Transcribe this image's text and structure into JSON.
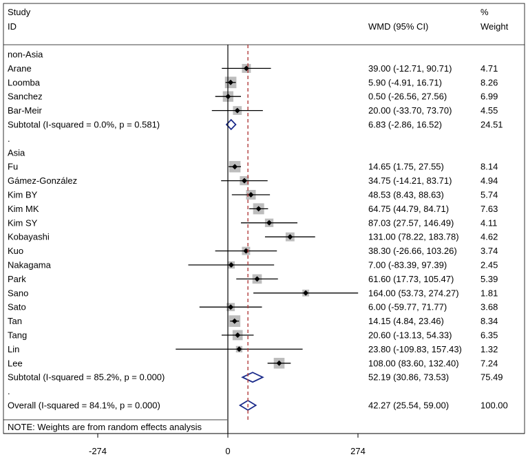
{
  "chart_data": {
    "type": "forest",
    "header": {
      "study_line1": "Study",
      "study_line2": "ID",
      "effect": "WMD (95% CI)",
      "weight_line1": "%",
      "weight_line2": "Weight"
    },
    "x_axis": {
      "range": [
        -320,
        400
      ],
      "ticks": [
        {
          "value": -274,
          "label": "-274"
        },
        {
          "value": 0,
          "label": "0"
        },
        {
          "value": 274,
          "label": "274"
        }
      ],
      "null_line": 0
    },
    "rows": [
      {
        "kind": "group",
        "label": "non-Asia"
      },
      {
        "kind": "study",
        "label": "Arane",
        "est": 39.0,
        "lo": -12.71,
        "hi": 90.71,
        "ci_text": "39.00 (-12.71, 90.71)",
        "weight": "4.71"
      },
      {
        "kind": "study",
        "label": "Loomba",
        "est": 5.9,
        "lo": -4.91,
        "hi": 16.71,
        "ci_text": "5.90 (-4.91, 16.71)",
        "weight": "8.26"
      },
      {
        "kind": "study",
        "label": "Sanchez",
        "est": 0.5,
        "lo": -26.56,
        "hi": 27.56,
        "ci_text": "0.50 (-26.56, 27.56)",
        "weight": "6.99"
      },
      {
        "kind": "study",
        "label": "Bar-Meir",
        "est": 20.0,
        "lo": -33.7,
        "hi": 73.7,
        "ci_text": "20.00 (-33.70, 73.70)",
        "weight": "4.55"
      },
      {
        "kind": "subtotal",
        "label": "Subtotal  (I-squared = 0.0%, p = 0.581)",
        "est": 6.83,
        "lo": -2.86,
        "hi": 16.52,
        "ci_text": "6.83 (-2.86, 16.52)",
        "weight": "24.51"
      },
      {
        "kind": "spacer",
        "label": "."
      },
      {
        "kind": "group",
        "label": "Asia"
      },
      {
        "kind": "study",
        "label": "Fu",
        "est": 14.65,
        "lo": 1.75,
        "hi": 27.55,
        "ci_text": "14.65 (1.75, 27.55)",
        "weight": "8.14"
      },
      {
        "kind": "study",
        "label": "Gámez-González",
        "est": 34.75,
        "lo": -14.21,
        "hi": 83.71,
        "ci_text": "34.75 (-14.21, 83.71)",
        "weight": "4.94"
      },
      {
        "kind": "study",
        "label": "Kim BY",
        "est": 48.53,
        "lo": 8.43,
        "hi": 88.63,
        "ci_text": "48.53 (8.43, 88.63)",
        "weight": "5.74"
      },
      {
        "kind": "study",
        "label": "Kim MK",
        "est": 64.75,
        "lo": 44.79,
        "hi": 84.71,
        "ci_text": "64.75 (44.79, 84.71)",
        "weight": "7.63"
      },
      {
        "kind": "study",
        "label": "Kim SY",
        "est": 87.03,
        "lo": 27.57,
        "hi": 146.49,
        "ci_text": "87.03 (27.57, 146.49)",
        "weight": "4.11"
      },
      {
        "kind": "study",
        "label": "Kobayashi",
        "est": 131.0,
        "lo": 78.22,
        "hi": 183.78,
        "ci_text": "131.00 (78.22, 183.78)",
        "weight": "4.62"
      },
      {
        "kind": "study",
        "label": "Kuo",
        "est": 38.3,
        "lo": -26.66,
        "hi": 103.26,
        "ci_text": "38.30 (-26.66, 103.26)",
        "weight": "3.74"
      },
      {
        "kind": "study",
        "label": "Nakagama",
        "est": 7.0,
        "lo": -83.39,
        "hi": 97.39,
        "ci_text": "7.00 (-83.39, 97.39)",
        "weight": "2.45"
      },
      {
        "kind": "study",
        "label": "Park",
        "est": 61.6,
        "lo": 17.73,
        "hi": 105.47,
        "ci_text": "61.60 (17.73, 105.47)",
        "weight": "5.39"
      },
      {
        "kind": "study",
        "label": "Sano",
        "est": 164.0,
        "lo": 53.73,
        "hi": 274.27,
        "ci_text": "164.00 (53.73, 274.27)",
        "weight": "1.81"
      },
      {
        "kind": "study",
        "label": "Sato",
        "est": 6.0,
        "lo": -59.77,
        "hi": 71.77,
        "ci_text": "6.00 (-59.77, 71.77)",
        "weight": "3.68"
      },
      {
        "kind": "study",
        "label": "Tan",
        "est": 14.15,
        "lo": 4.84,
        "hi": 23.46,
        "ci_text": "14.15 (4.84, 23.46)",
        "weight": "8.34"
      },
      {
        "kind": "study",
        "label": "Tang",
        "est": 20.6,
        "lo": -13.13,
        "hi": 54.33,
        "ci_text": "20.60 (-13.13, 54.33)",
        "weight": "6.35"
      },
      {
        "kind": "study",
        "label": "Lin",
        "est": 23.8,
        "lo": -109.83,
        "hi": 157.43,
        "ci_text": "23.80 (-109.83, 157.43)",
        "weight": "1.32"
      },
      {
        "kind": "study",
        "label": "Lee",
        "est": 108.0,
        "lo": 83.6,
        "hi": 132.4,
        "ci_text": "108.00 (83.60, 132.40)",
        "weight": "7.24"
      },
      {
        "kind": "subtotal",
        "label": "Subtotal  (I-squared = 85.2%, p = 0.000)",
        "est": 52.19,
        "lo": 30.86,
        "hi": 73.53,
        "ci_text": "52.19 (30.86, 73.53)",
        "weight": "75.49"
      },
      {
        "kind": "spacer",
        "label": "."
      },
      {
        "kind": "overall",
        "label": "Overall  (I-squared = 84.1%, p = 0.000)",
        "est": 42.27,
        "lo": 25.54,
        "hi": 59.0,
        "ci_text": "42.27 (25.54, 59.00)",
        "weight": "100.00"
      }
    ],
    "note": "NOTE: Weights are from random effects analysis",
    "colors": {
      "square": "#bdbdbd",
      "diamond": "#1a2a8a",
      "overall_line": "#b03a3a",
      "line": "#000000"
    }
  }
}
